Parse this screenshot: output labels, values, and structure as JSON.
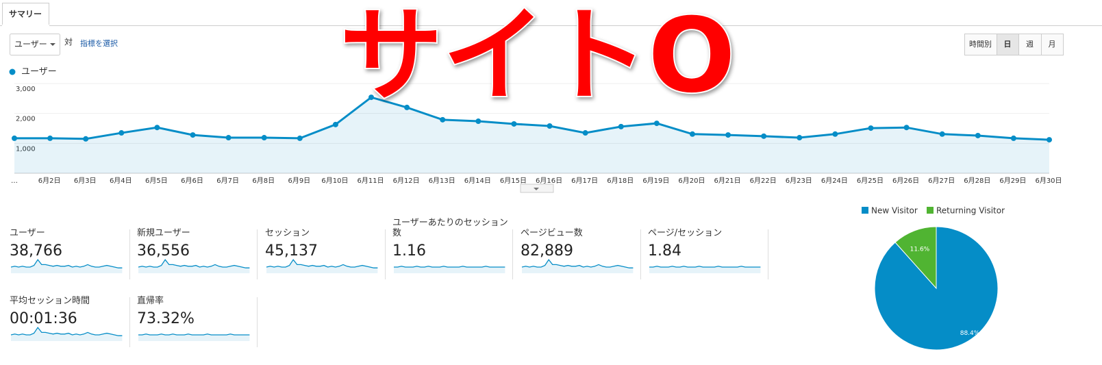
{
  "tab": "サマリー",
  "metric_select": "ユーザー",
  "vs": "対",
  "select_metric": "指標を選択",
  "granularity": [
    "時間別",
    "日",
    "週",
    "月"
  ],
  "overlay": "サイトO",
  "metrics": [
    {
      "label": "ユーザー",
      "value": "38,766"
    },
    {
      "label": "新規ユーザー",
      "value": "36,556"
    },
    {
      "label": "セッション",
      "value": "45,137"
    },
    {
      "label": "ユーザーあたりのセッション数",
      "value": "1.16"
    },
    {
      "label": "ページビュー数",
      "value": "82,889"
    },
    {
      "label": "ページ/セッション",
      "value": "1.84"
    },
    {
      "label": "平均セッション時間",
      "value": "00:01:36"
    },
    {
      "label": "直帰率",
      "value": "73.32%"
    }
  ],
  "chart_data": [
    {
      "type": "line",
      "categories": [
        "…",
        "6月2日",
        "6月3日",
        "6月4日",
        "6月5日",
        "6月6日",
        "6月7日",
        "6月8日",
        "6月9日",
        "6月10日",
        "6月11日",
        "6月12日",
        "6月13日",
        "6月14日",
        "6月15日",
        "6月16日",
        "6月17日",
        "6月18日",
        "6月19日",
        "6月20日",
        "6月21日",
        "6月22日",
        "6月23日",
        "6月24日",
        "6月25日",
        "6月26日",
        "6月27日",
        "6月28日",
        "6月29日",
        "6月30日"
      ],
      "series": [
        {
          "name": "ユーザー",
          "color": "#058dc7",
          "values": [
            1170,
            1170,
            1150,
            1350,
            1530,
            1280,
            1190,
            1190,
            1170,
            1630,
            2540,
            2200,
            1790,
            1740,
            1650,
            1580,
            1350,
            1560,
            1670,
            1310,
            1280,
            1240,
            1190,
            1310,
            1510,
            1530,
            1310,
            1260,
            1170,
            1120
          ]
        }
      ],
      "ylim": [
        0,
        3000
      ],
      "yticks": [
        {
          "value": 1000,
          "label": "1,000"
        },
        {
          "value": 2000,
          "label": "2,000"
        },
        {
          "value": 3000,
          "label": "3,000"
        }
      ],
      "grid": true
    },
    {
      "type": "pie",
      "categories": [
        "New Visitor",
        "Returning Visitor"
      ],
      "values": [
        88.4,
        11.6
      ],
      "value_labels": [
        "88.4%",
        "11.6%"
      ],
      "colors": [
        "#058dc7",
        "#50b432"
      ],
      "legend": "top"
    }
  ]
}
